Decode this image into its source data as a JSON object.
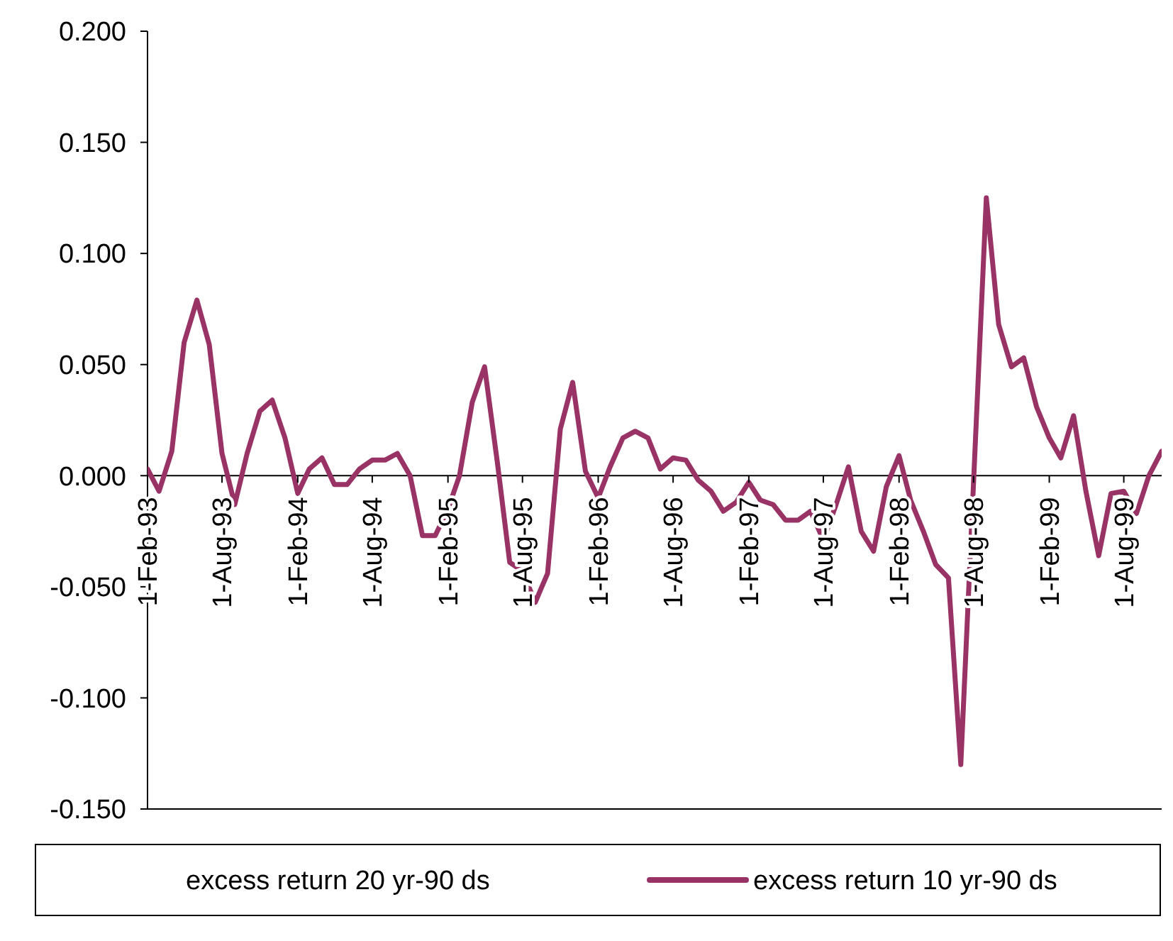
{
  "chart_data": {
    "type": "line",
    "x": [
      "1993-02",
      "1993-03",
      "1993-04",
      "1993-05",
      "1993-06",
      "1993-07",
      "1993-08",
      "1993-09",
      "1993-10",
      "1993-11",
      "1993-12",
      "1994-01",
      "1994-02",
      "1994-03",
      "1994-04",
      "1994-05",
      "1994-06",
      "1994-07",
      "1994-08",
      "1994-09",
      "1994-10",
      "1994-11",
      "1994-12",
      "1995-01",
      "1995-02",
      "1995-03",
      "1995-04",
      "1995-05",
      "1995-06",
      "1995-07",
      "1995-08",
      "1995-09",
      "1995-10",
      "1995-11",
      "1995-12",
      "1996-01",
      "1996-02",
      "1996-03",
      "1996-04",
      "1996-05",
      "1996-06",
      "1996-07",
      "1996-08",
      "1996-09",
      "1996-10",
      "1996-11",
      "1996-12",
      "1997-01",
      "1997-02",
      "1997-03",
      "1997-04",
      "1997-05",
      "1997-06",
      "1997-07",
      "1997-08",
      "1997-09",
      "1997-10",
      "1997-11",
      "1997-12",
      "1998-01",
      "1998-02",
      "1998-03",
      "1998-04",
      "1998-05",
      "1998-06",
      "1998-07",
      "1998-08",
      "1998-09",
      "1998-10",
      "1998-11",
      "1998-12",
      "1999-01",
      "1999-02",
      "1999-03",
      "1999-04",
      "1999-05",
      "1999-06",
      "1999-07",
      "1999-08",
      "1999-09",
      "1999-10",
      "1999-11"
    ],
    "series": [
      {
        "name": "excess return 20 yr-90 ds",
        "values": [
          null,
          null,
          null,
          null,
          null,
          null,
          null,
          null,
          null,
          null,
          null,
          null,
          null,
          null,
          null,
          null,
          null,
          null,
          null,
          null,
          null,
          null,
          null,
          null,
          null,
          null,
          null,
          null,
          null,
          null,
          null,
          null,
          null,
          null,
          null,
          null,
          null,
          null,
          null,
          null,
          null,
          null,
          null,
          null,
          null,
          null,
          null,
          null,
          null,
          null,
          null,
          null,
          null,
          null,
          null,
          null,
          null,
          null,
          null,
          null,
          null,
          null,
          null,
          null,
          null,
          null,
          null,
          null,
          null,
          null,
          null,
          null,
          null,
          null,
          null,
          null,
          null,
          null,
          null,
          null,
          null,
          null
        ]
      },
      {
        "name": "excess return 10 yr-90 ds",
        "color": "#993366",
        "values": [
          0.003,
          -0.007,
          0.011,
          0.06,
          0.079,
          0.059,
          0.01,
          -0.013,
          0.01,
          0.029,
          0.034,
          0.017,
          -0.008,
          0.003,
          0.008,
          -0.004,
          -0.004,
          0.003,
          0.007,
          0.007,
          0.01,
          0.0,
          -0.027,
          -0.027,
          -0.015,
          0.0,
          0.033,
          0.049,
          0.006,
          -0.039,
          -0.043,
          -0.057,
          -0.044,
          0.021,
          0.042,
          0.002,
          -0.01,
          0.004,
          0.017,
          0.02,
          0.017,
          0.003,
          0.008,
          0.007,
          -0.002,
          -0.007,
          -0.016,
          -0.012,
          -0.003,
          -0.011,
          -0.013,
          -0.02,
          -0.02,
          -0.016,
          -0.029,
          -0.013,
          0.004,
          -0.025,
          -0.034,
          -0.005,
          0.009,
          -0.011,
          -0.025,
          -0.04,
          -0.046,
          -0.13,
          -0.003,
          0.125,
          0.068,
          0.049,
          0.053,
          0.031,
          0.017,
          0.008,
          0.027,
          -0.007,
          -0.036,
          -0.008,
          -0.007,
          -0.017,
          0.0,
          0.011
        ]
      }
    ],
    "xlim": [
      "1993-02",
      "1999-11"
    ],
    "xticks": [
      {
        "value": "1993-02",
        "label": "1-Feb-93"
      },
      {
        "value": "1993-08",
        "label": "1-Aug-93"
      },
      {
        "value": "1994-02",
        "label": "1-Feb-94"
      },
      {
        "value": "1994-08",
        "label": "1-Aug-94"
      },
      {
        "value": "1995-02",
        "label": "1-Feb-95"
      },
      {
        "value": "1995-08",
        "label": "1-Aug-95"
      },
      {
        "value": "1996-02",
        "label": "1-Feb-96"
      },
      {
        "value": "1996-08",
        "label": "1-Aug-96"
      },
      {
        "value": "1997-02",
        "label": "1-Feb-97"
      },
      {
        "value": "1997-08",
        "label": "1-Aug-97"
      },
      {
        "value": "1998-02",
        "label": "1-Feb-98"
      },
      {
        "value": "1998-08",
        "label": "1-Aug-98"
      },
      {
        "value": "1999-02",
        "label": "1-Feb-99"
      },
      {
        "value": "1999-08",
        "label": "1-Aug-99"
      }
    ],
    "ylim": [
      -0.15,
      0.2
    ],
    "yticks": [
      {
        "value": -0.15,
        "label": "-0.150"
      },
      {
        "value": -0.1,
        "label": "-0.100"
      },
      {
        "value": -0.05,
        "label": "-0.050"
      },
      {
        "value": 0,
        "label": "0.000"
      },
      {
        "value": 0.05,
        "label": "0.050"
      },
      {
        "value": 0.1,
        "label": "0.100"
      },
      {
        "value": 0.15,
        "label": "0.150"
      },
      {
        "value": 0.2,
        "label": "0.200"
      }
    ],
    "grid": false,
    "legend": "bottom",
    "marker": "none",
    "line_style": "solid"
  }
}
